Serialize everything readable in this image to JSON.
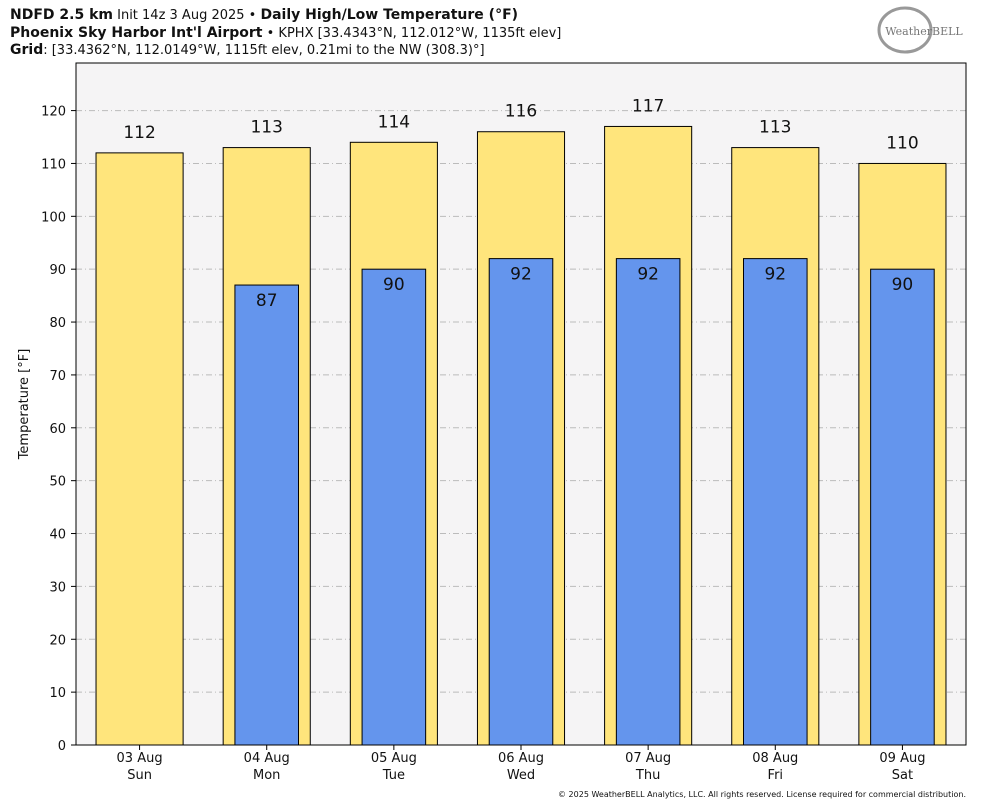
{
  "header": {
    "line1": [
      "NDFD 2.5 km",
      " Init 14z 3 Aug 2025 • ",
      "Daily High/Low Temperature (°F)"
    ],
    "line2": [
      "Phoenix Sky Harbor Int'l Airport",
      " • KPHX [33.4343°N, 112.012°W, 1135ft elev]"
    ],
    "line3": [
      "Grid",
      ": [33.4362°N, 112.0149°W, 1115ft elev, 0.21mi to the NW (308.3)°]"
    ],
    "logo": "WeatherBELL",
    "footer": "© 2025 WeatherBELL Analytics, LLC. All rights reserved. License required for commercial distribution."
  },
  "chart_data": {
    "type": "bar",
    "ylabel": "Temperature [°F]",
    "categories": [
      "03 Aug",
      "04 Aug",
      "05 Aug",
      "06 Aug",
      "07 Aug",
      "08 Aug",
      "09 Aug"
    ],
    "weekdays": [
      "Sun",
      "Mon",
      "Tue",
      "Wed",
      "Thu",
      "Fri",
      "Sat"
    ],
    "series": [
      {
        "color": "#ffe57c",
        "values": [
          112,
          113,
          114,
          116,
          117,
          113,
          110
        ]
      },
      {
        "color": "#6495ed",
        "values": [
          null,
          87,
          90,
          92,
          92,
          92,
          90
        ]
      }
    ],
    "ylim": [
      0,
      129
    ],
    "yticks": [
      0,
      10,
      20,
      30,
      40,
      50,
      60,
      70,
      80,
      90,
      100,
      110,
      120
    ],
    "grid": true
  }
}
